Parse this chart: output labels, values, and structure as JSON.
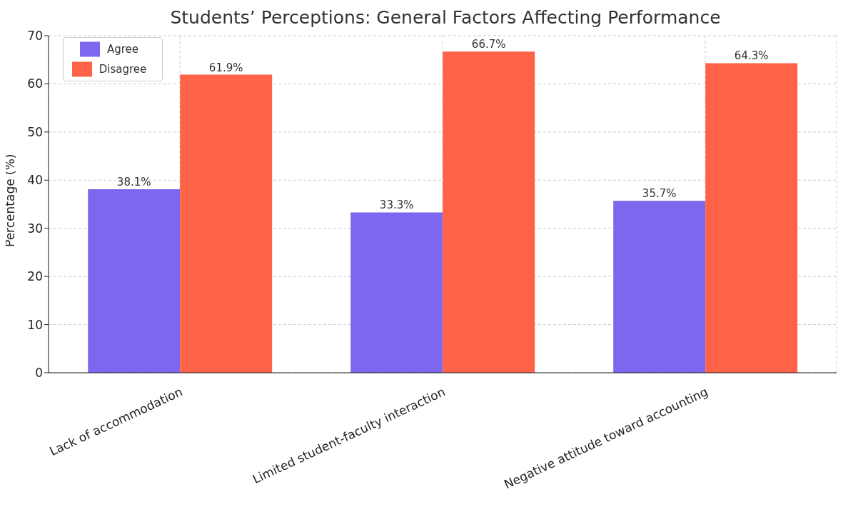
{
  "chart_data": {
    "type": "bar",
    "title": "Students’ Perceptions: General Factors Affecting Performance",
    "ylabel": "Percentage (%)",
    "categories": [
      "Lack of accommodation",
      "Limited student-faculty interaction",
      "Negative attitude toward accounting"
    ],
    "series": [
      {
        "name": "Agree",
        "color": "#7b68ee",
        "values": [
          38.1,
          33.3,
          35.7
        ],
        "value_labels": [
          "38.1%",
          "33.3%",
          "35.7%"
        ]
      },
      {
        "name": "Disagree",
        "color": "#ff6347",
        "values": [
          61.9,
          66.7,
          64.3
        ],
        "value_labels": [
          "61.9%",
          "66.7%",
          "64.3%"
        ]
      }
    ],
    "ylim": [
      0,
      70
    ],
    "yticks": [
      0,
      10,
      20,
      30,
      40,
      50,
      60,
      70
    ],
    "grid": true,
    "legend": "top left"
  }
}
